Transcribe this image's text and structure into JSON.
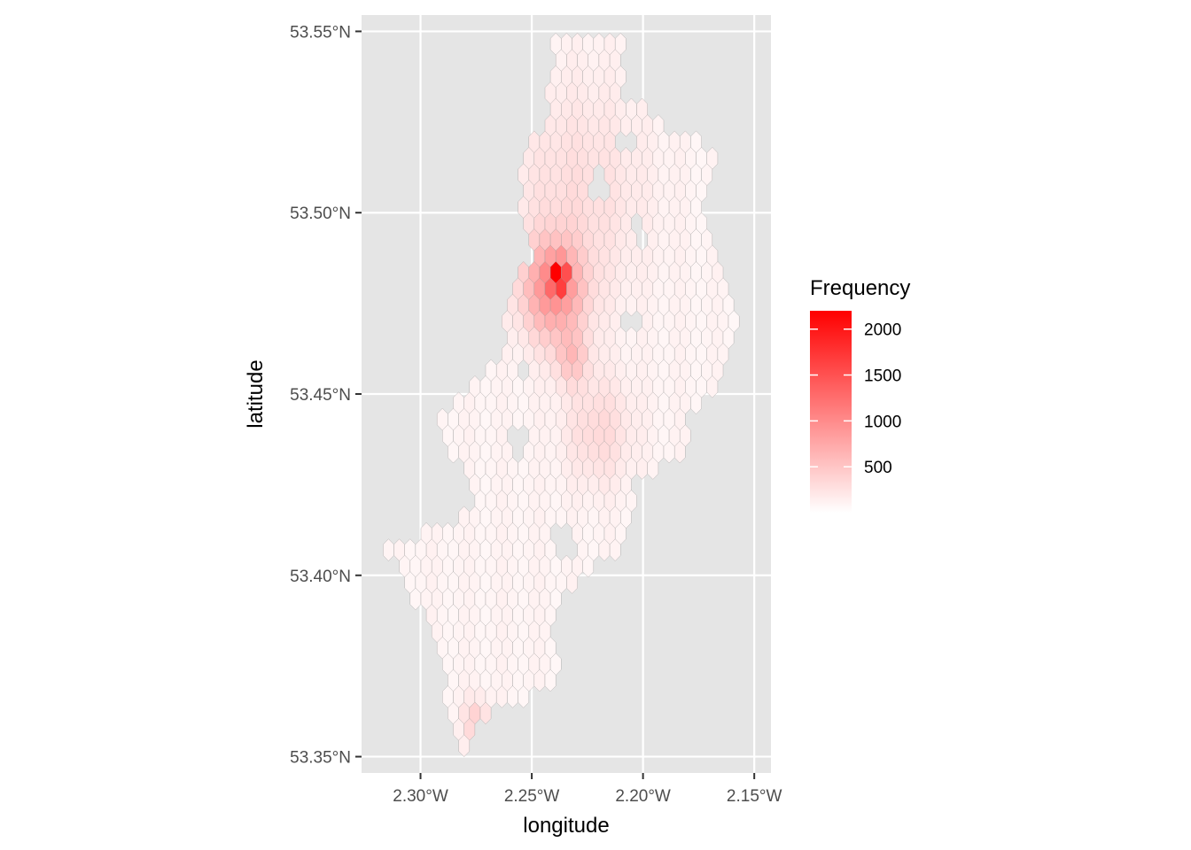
{
  "chart_data": {
    "type": "heatmap",
    "subtype": "hexbin-map",
    "title": "",
    "xlabel": "longitude",
    "ylabel": "latitude",
    "xlim": [
      -2.3265,
      -2.1425
    ],
    "ylim": [
      53.3455,
      53.5545
    ],
    "x_ticks": [
      {
        "value": -2.3,
        "label": "2.30°W"
      },
      {
        "value": -2.25,
        "label": "2.25°W"
      },
      {
        "value": -2.2,
        "label": "2.20°W"
      },
      {
        "value": -2.15,
        "label": "2.15°W"
      }
    ],
    "y_ticks": [
      {
        "value": 53.35,
        "label": "53.35°N"
      },
      {
        "value": 53.4,
        "label": "53.40°N"
      },
      {
        "value": 53.45,
        "label": "53.45°N"
      },
      {
        "value": 53.5,
        "label": "53.50°N"
      },
      {
        "value": 53.55,
        "label": "53.55°N"
      }
    ],
    "grid": true,
    "background": "#e5e5e5",
    "legend": {
      "title": "Frequency",
      "position": "right",
      "labels": [
        {
          "value": 2000,
          "label": "2000"
        },
        {
          "value": 1500,
          "label": "1500"
        },
        {
          "value": 1000,
          "label": "1000"
        },
        {
          "value": 500,
          "label": "500"
        }
      ],
      "range": [
        0,
        2200
      ],
      "low_color": "#ffffff",
      "high_color": "#ff0000"
    },
    "hex_size": {
      "dx": 0.00485,
      "dy": 0.0045
    },
    "region": [
      {
        "lat": 53.543,
        "lon_min": -2.24,
        "lon_max": -2.21
      },
      {
        "lat": 53.534,
        "lon_min": -2.244,
        "lon_max": -2.21
      },
      {
        "lat": 53.525,
        "lon_min": -2.244,
        "lon_max": -2.192
      },
      {
        "lat": 53.516,
        "lon_min": -2.255,
        "lon_max": -2.165
      },
      {
        "lat": 53.507,
        "lon_min": -2.255,
        "lon_max": -2.172
      },
      {
        "lat": 53.498,
        "lon_min": -2.255,
        "lon_max": -2.172
      },
      {
        "lat": 53.489,
        "lon_min": -2.25,
        "lon_max": -2.169
      },
      {
        "lat": 53.48,
        "lon_min": -2.26,
        "lon_max": -2.164
      },
      {
        "lat": 53.471,
        "lon_min": -2.262,
        "lon_max": -2.157
      },
      {
        "lat": 53.462,
        "lon_min": -2.263,
        "lon_max": -2.16
      },
      {
        "lat": 53.453,
        "lon_min": -2.278,
        "lon_max": -2.165
      },
      {
        "lat": 53.444,
        "lon_min": -2.293,
        "lon_max": -2.18
      },
      {
        "lat": 53.435,
        "lon_min": -2.29,
        "lon_max": -2.178
      },
      {
        "lat": 53.426,
        "lon_min": -2.278,
        "lon_max": -2.205
      },
      {
        "lat": 53.417,
        "lon_min": -2.278,
        "lon_max": -2.205
      },
      {
        "lat": 53.408,
        "lon_min": -2.315,
        "lon_max": -2.208
      },
      {
        "lat": 53.399,
        "lon_min": -2.31,
        "lon_max": -2.23
      },
      {
        "lat": 53.39,
        "lon_min": -2.3,
        "lon_max": -2.24
      },
      {
        "lat": 53.381,
        "lon_min": -2.295,
        "lon_max": -2.24
      },
      {
        "lat": 53.372,
        "lon_min": -2.29,
        "lon_max": -2.235
      },
      {
        "lat": 53.363,
        "lon_min": -2.287,
        "lon_max": -2.265
      },
      {
        "lat": 53.356,
        "lon_min": -2.285,
        "lon_max": -2.278
      }
    ],
    "holes": [
      {
        "lon": -2.221,
        "lat": 53.507,
        "r": 0.0045
      },
      {
        "lon": -2.208,
        "lat": 53.52,
        "r": 0.004
      },
      {
        "lon": -2.205,
        "lat": 53.47,
        "r": 0.004
      },
      {
        "lon": -2.255,
        "lat": 53.437,
        "r": 0.004
      },
      {
        "lon": -2.253,
        "lat": 53.455,
        "r": 0.0035
      },
      {
        "lon": -2.235,
        "lat": 53.409,
        "r": 0.006
      },
      {
        "lon": -2.202,
        "lat": 53.495,
        "r": 0.0035
      }
    ],
    "hotspots": [
      {
        "lon": -2.238,
        "lat": 53.4825,
        "value": 2200,
        "spread": 0.0025
      },
      {
        "lon": -2.24,
        "lat": 53.479,
        "value": 800,
        "spread": 0.009
      },
      {
        "lon": -2.232,
        "lat": 53.46,
        "value": 350,
        "spread": 0.005
      },
      {
        "lon": -2.275,
        "lat": 53.36,
        "value": 250,
        "spread": 0.004
      },
      {
        "lon": -2.23,
        "lat": 53.505,
        "value": 150,
        "spread": 0.02
      },
      {
        "lon": -2.22,
        "lat": 53.44,
        "value": 180,
        "spread": 0.01
      }
    ],
    "base_value": 40
  }
}
